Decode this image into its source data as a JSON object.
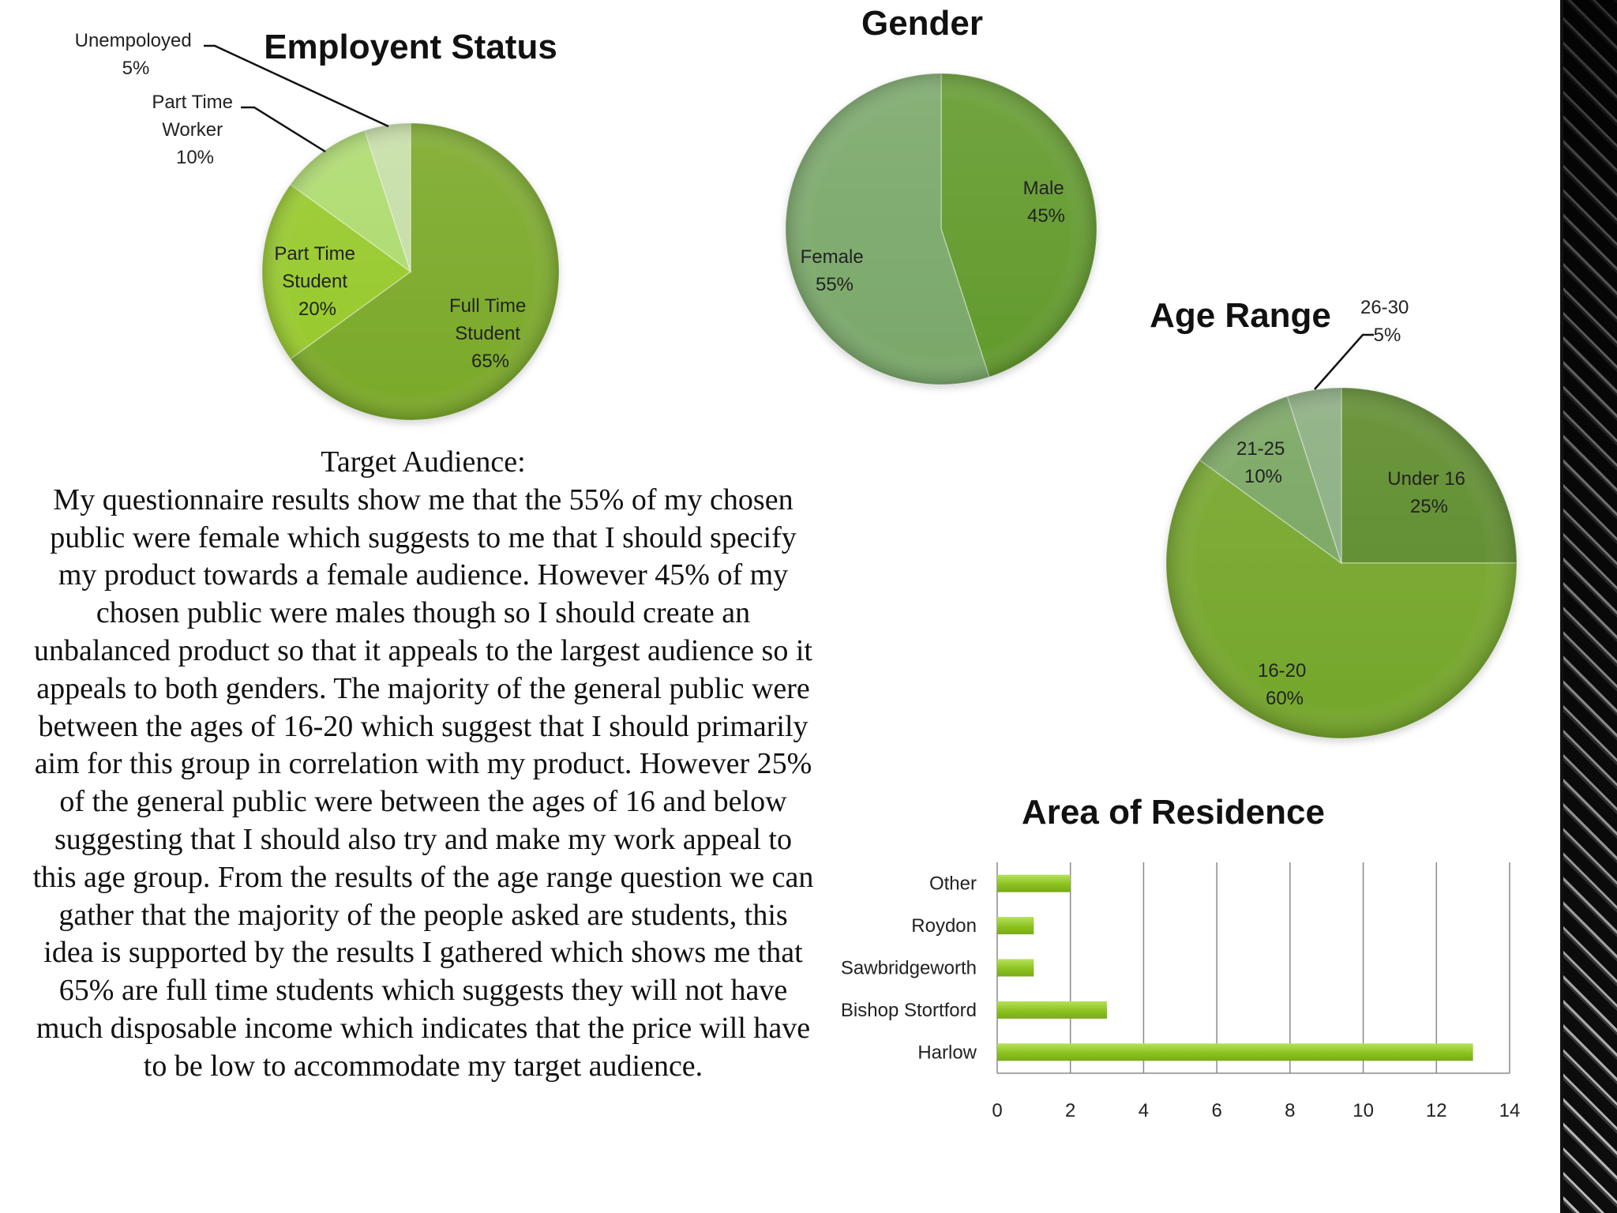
{
  "text_block": {
    "heading": "Target Audience:",
    "paragraph": "My questionnaire results show me that the 55% of my chosen public were female which suggests to me that I should specify my product towards a female audience. However 45% of my chosen public were males though so I should create an unbalanced product so that it appeals to the largest audience so it appeals to both genders. The majority of the general public were between the ages of 16-20 which suggest that I should primarily aim for this group in correlation with my product. However 25% of the general public were between the ages of 16 and below suggesting that I should also try and make my work appeal to this age group. From the results of the age range question we can gather that the majority of the people asked are students, this idea is supported by the results I gathered which shows me that 65% are full time students  which suggests they will not have much disposable income which indicates that the price will have to be low to accommodate my target audience."
  },
  "chart_data": [
    {
      "id": "employment",
      "type": "pie",
      "title": "Employent Status",
      "slices": [
        {
          "label": "Full Time Student",
          "value": 65,
          "display": "65%",
          "color": "#7aa928"
        },
        {
          "label": "Part Time Student",
          "value": 20,
          "display": "20%",
          "color": "#96c92a"
        },
        {
          "label": "Part Time Worker",
          "value": 10,
          "display": "10%",
          "color": "#addb6d"
        },
        {
          "label": "Unempoloyed",
          "value": 5,
          "display": "5%",
          "color": "#c6dea6"
        }
      ]
    },
    {
      "id": "gender",
      "type": "pie",
      "title": "Gender",
      "slices": [
        {
          "label": "Male",
          "value": 45,
          "display": "45%",
          "color": "#629a2c"
        },
        {
          "label": "Female",
          "value": 55,
          "display": "55%",
          "color": "#7aa869"
        }
      ]
    },
    {
      "id": "age",
      "type": "pie",
      "title": "Age Range",
      "slices": [
        {
          "label": "Under 16",
          "value": 25,
          "display": "25%",
          "color": "#5c8b2a"
        },
        {
          "label": "16-20",
          "value": 60,
          "display": "60%",
          "color": "#74a62a"
        },
        {
          "label": "21-25",
          "value": 10,
          "display": "10%",
          "color": "#78a560"
        },
        {
          "label": "26-30",
          "value": 5,
          "display": "5%",
          "color": "#8aae80"
        }
      ]
    },
    {
      "id": "residence",
      "type": "bar",
      "orientation": "horizontal",
      "title": "Area of Residence",
      "categories": [
        "Other",
        "Roydon",
        "Sawbridgeworth",
        "Bishop Stortford",
        "Harlow"
      ],
      "values": [
        2,
        1,
        1,
        3,
        13
      ],
      "xlim": [
        0,
        14
      ],
      "xticks": [
        0,
        2,
        4,
        6,
        8,
        10,
        12,
        14
      ],
      "grid": true,
      "color": "#8cc220"
    }
  ]
}
